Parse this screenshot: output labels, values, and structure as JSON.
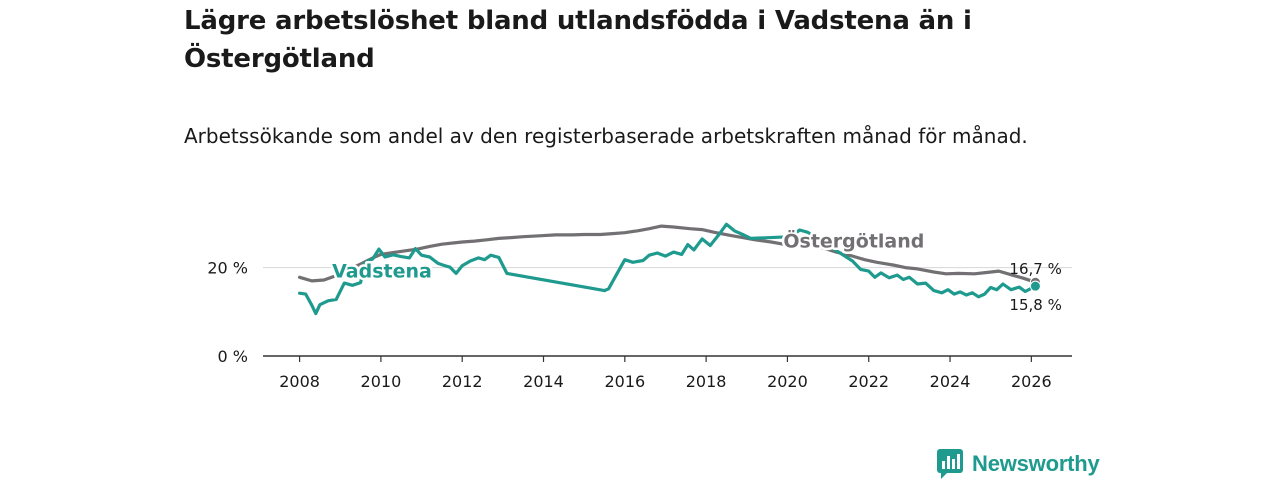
{
  "title": "Lägre arbetslöshet bland utlandsfödda i Vadstena än i Östergötland",
  "subtitle": "Arbetssökande som andel av den registerbaserade arbetskraften månad för månad.",
  "brand": {
    "name": "Newsworthy",
    "icon": "newsworthy-logo-icon",
    "color": "#1f9a8e"
  },
  "chart_data": {
    "type": "line",
    "xlim": [
      2007.1,
      2027.0
    ],
    "ylim": [
      0,
      31
    ],
    "x_ticks": [
      2008,
      2010,
      2012,
      2014,
      2016,
      2018,
      2020,
      2022,
      2024,
      2026
    ],
    "x_tick_labels": [
      "2008",
      "2010",
      "2012",
      "2014",
      "2016",
      "2018",
      "2020",
      "2022",
      "2024",
      "2026"
    ],
    "y_ticks": [
      0,
      20
    ],
    "y_tick_labels": [
      "0 %",
      "20 %"
    ],
    "grid": true,
    "series": [
      {
        "name": "Östergötland",
        "color": "#727073",
        "label_at": [
          2019.9,
          24.5
        ],
        "end_label": "16,7 %",
        "points": [
          [
            2008.0,
            17.8
          ],
          [
            2008.3,
            17.0
          ],
          [
            2008.6,
            17.2
          ],
          [
            2008.9,
            18.2
          ],
          [
            2009.2,
            19.5
          ],
          [
            2009.5,
            20.8
          ],
          [
            2009.8,
            22.2
          ],
          [
            2010.0,
            23.0
          ],
          [
            2010.3,
            23.4
          ],
          [
            2010.6,
            23.8
          ],
          [
            2010.9,
            24.2
          ],
          [
            2011.2,
            24.8
          ],
          [
            2011.5,
            25.3
          ],
          [
            2011.8,
            25.6
          ],
          [
            2012.0,
            25.8
          ],
          [
            2012.3,
            26.0
          ],
          [
            2012.6,
            26.3
          ],
          [
            2012.9,
            26.6
          ],
          [
            2013.2,
            26.8
          ],
          [
            2013.5,
            27.0
          ],
          [
            2013.9,
            27.2
          ],
          [
            2014.3,
            27.4
          ],
          [
            2014.7,
            27.4
          ],
          [
            2015.0,
            27.5
          ],
          [
            2015.4,
            27.5
          ],
          [
            2015.7,
            27.7
          ],
          [
            2016.0,
            27.9
          ],
          [
            2016.3,
            28.3
          ],
          [
            2016.6,
            28.8
          ],
          [
            2016.9,
            29.4
          ],
          [
            2017.2,
            29.2
          ],
          [
            2017.6,
            28.8
          ],
          [
            2017.9,
            28.6
          ],
          [
            2018.2,
            28.0
          ],
          [
            2018.6,
            27.3
          ],
          [
            2018.9,
            26.8
          ],
          [
            2019.2,
            26.3
          ],
          [
            2019.6,
            25.8
          ],
          [
            2019.9,
            25.3
          ],
          [
            2020.2,
            25.0
          ],
          [
            2020.6,
            25.0
          ],
          [
            2020.9,
            24.4
          ],
          [
            2021.2,
            23.5
          ],
          [
            2021.6,
            22.6
          ],
          [
            2021.9,
            21.8
          ],
          [
            2022.2,
            21.2
          ],
          [
            2022.6,
            20.6
          ],
          [
            2022.9,
            20.0
          ],
          [
            2023.2,
            19.7
          ],
          [
            2023.6,
            19.0
          ],
          [
            2023.9,
            18.6
          ],
          [
            2024.2,
            18.7
          ],
          [
            2024.6,
            18.6
          ],
          [
            2024.9,
            18.9
          ],
          [
            2025.2,
            19.2
          ],
          [
            2025.5,
            18.4
          ],
          [
            2025.8,
            17.6
          ],
          [
            2026.1,
            16.7
          ]
        ]
      },
      {
        "name": "Vadstena",
        "color": "#1f9a8e",
        "label_at": [
          2008.8,
          17.8
        ],
        "end_label": "15,8 %",
        "points": [
          [
            2008.0,
            14.2
          ],
          [
            2008.15,
            14.0
          ],
          [
            2008.3,
            11.5
          ],
          [
            2008.4,
            9.6
          ],
          [
            2008.5,
            11.6
          ],
          [
            2008.7,
            12.5
          ],
          [
            2008.9,
            12.8
          ],
          [
            2009.1,
            16.5
          ],
          [
            2009.3,
            16.0
          ],
          [
            2009.5,
            16.6
          ],
          [
            2009.6,
            21.0
          ],
          [
            2009.8,
            22.0
          ],
          [
            2009.95,
            24.2
          ],
          [
            2010.1,
            22.4
          ],
          [
            2010.3,
            22.9
          ],
          [
            2010.5,
            22.5
          ],
          [
            2010.7,
            22.2
          ],
          [
            2010.85,
            24.3
          ],
          [
            2011.0,
            22.8
          ],
          [
            2011.2,
            22.4
          ],
          [
            2011.4,
            21.0
          ],
          [
            2011.55,
            20.5
          ],
          [
            2011.7,
            20.1
          ],
          [
            2011.85,
            18.7
          ],
          [
            2012.0,
            20.4
          ],
          [
            2012.2,
            21.5
          ],
          [
            2012.4,
            22.2
          ],
          [
            2012.55,
            21.8
          ],
          [
            2012.7,
            22.8
          ],
          [
            2012.9,
            22.3
          ],
          [
            2013.1,
            18.7
          ],
          [
            2015.5,
            14.8
          ],
          [
            2015.6,
            15.2
          ],
          [
            2015.8,
            18.5
          ],
          [
            2016.0,
            21.8
          ],
          [
            2016.2,
            21.2
          ],
          [
            2016.45,
            21.6
          ],
          [
            2016.6,
            22.8
          ],
          [
            2016.8,
            23.3
          ],
          [
            2017.0,
            22.6
          ],
          [
            2017.2,
            23.5
          ],
          [
            2017.4,
            23.0
          ],
          [
            2017.55,
            25.2
          ],
          [
            2017.7,
            24.0
          ],
          [
            2017.9,
            26.5
          ],
          [
            2018.1,
            25.0
          ],
          [
            2018.3,
            27.3
          ],
          [
            2018.5,
            29.8
          ],
          [
            2018.7,
            28.3
          ],
          [
            2018.9,
            27.5
          ],
          [
            2019.1,
            26.6
          ],
          [
            2020.1,
            27.0
          ],
          [
            2020.3,
            28.5
          ],
          [
            2020.5,
            28.0
          ],
          [
            2021.6,
            21.5
          ],
          [
            2021.8,
            19.6
          ],
          [
            2022.0,
            19.2
          ],
          [
            2022.15,
            17.8
          ],
          [
            2022.3,
            18.8
          ],
          [
            2022.5,
            17.7
          ],
          [
            2022.7,
            18.3
          ],
          [
            2022.85,
            17.3
          ],
          [
            2023.0,
            17.8
          ],
          [
            2023.2,
            16.3
          ],
          [
            2023.4,
            16.5
          ],
          [
            2023.6,
            14.8
          ],
          [
            2023.8,
            14.3
          ],
          [
            2023.95,
            15.0
          ],
          [
            2024.1,
            14.0
          ],
          [
            2024.25,
            14.5
          ],
          [
            2024.4,
            13.8
          ],
          [
            2024.55,
            14.3
          ],
          [
            2024.7,
            13.4
          ],
          [
            2024.85,
            14.0
          ],
          [
            2025.0,
            15.5
          ],
          [
            2025.15,
            15.0
          ],
          [
            2025.3,
            16.3
          ],
          [
            2025.5,
            15.0
          ],
          [
            2025.7,
            15.6
          ],
          [
            2025.85,
            14.6
          ],
          [
            2026.1,
            15.8
          ]
        ]
      }
    ]
  }
}
